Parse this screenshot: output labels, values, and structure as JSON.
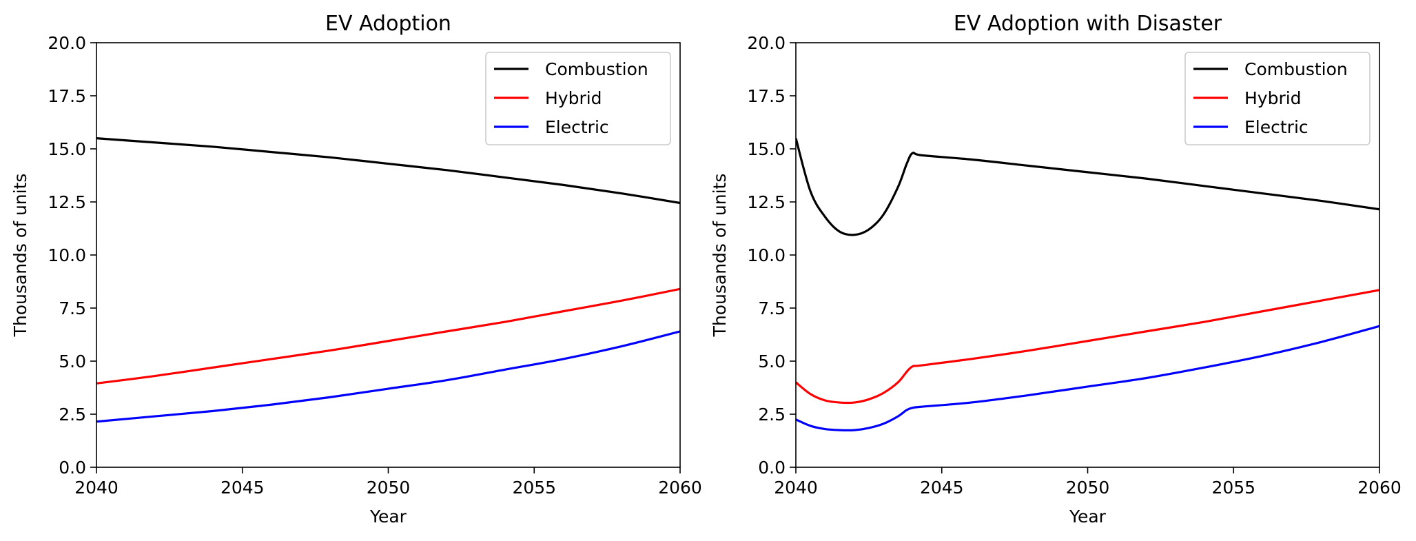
{
  "chart_data": [
    {
      "type": "line",
      "title": "EV Adoption",
      "xlabel": "Year",
      "ylabel": "Thousands of units",
      "xlim": [
        2040,
        2060
      ],
      "ylim": [
        0,
        20
      ],
      "xticks": [
        2040,
        2045,
        2050,
        2055,
        2060
      ],
      "yticks": [
        "0.0",
        "2.5",
        "5.0",
        "7.5",
        "10.0",
        "12.5",
        "15.0",
        "17.5",
        "20.0"
      ],
      "grid": false,
      "legend_position": "top-right",
      "x": [
        2040,
        2042,
        2044,
        2046,
        2048,
        2050,
        2052,
        2054,
        2056,
        2058,
        2060
      ],
      "series": [
        {
          "name": "Combustion",
          "color": "#000000",
          "values": [
            15.5,
            15.3,
            15.1,
            14.85,
            14.6,
            14.3,
            14.0,
            13.65,
            13.3,
            12.9,
            12.45
          ]
        },
        {
          "name": "Hybrid",
          "color": "#ff0000",
          "values": [
            3.95,
            4.3,
            4.7,
            5.1,
            5.5,
            5.95,
            6.4,
            6.85,
            7.35,
            7.85,
            8.4
          ]
        },
        {
          "name": "Electric",
          "color": "#0000ff",
          "values": [
            2.15,
            2.4,
            2.65,
            2.95,
            3.3,
            3.7,
            4.1,
            4.6,
            5.1,
            5.7,
            6.4
          ]
        }
      ]
    },
    {
      "type": "line",
      "title": "EV Adoption with Disaster",
      "xlabel": "Year",
      "ylabel": "Thousands of units",
      "xlim": [
        2040,
        2060
      ],
      "ylim": [
        0,
        20
      ],
      "xticks": [
        2040,
        2045,
        2050,
        2055,
        2060
      ],
      "yticks": [
        "0.0",
        "2.5",
        "5.0",
        "7.5",
        "10.0",
        "12.5",
        "15.0",
        "17.5",
        "20.0"
      ],
      "grid": false,
      "legend_position": "top-right",
      "x": [
        2040,
        2040.5,
        2041,
        2041.5,
        2042,
        2042.5,
        2043,
        2043.5,
        2043.8,
        2044,
        2044.3,
        2046,
        2048,
        2050,
        2052,
        2054,
        2056,
        2058,
        2060
      ],
      "series": [
        {
          "name": "Combustion",
          "color": "#000000",
          "values": [
            15.5,
            13.0,
            11.8,
            11.1,
            10.95,
            11.2,
            11.9,
            13.2,
            14.3,
            14.8,
            14.7,
            14.5,
            14.2,
            13.9,
            13.6,
            13.25,
            12.9,
            12.55,
            12.15
          ]
        },
        {
          "name": "Hybrid",
          "color": "#ff0000",
          "values": [
            4.0,
            3.45,
            3.15,
            3.05,
            3.05,
            3.2,
            3.5,
            4.0,
            4.5,
            4.75,
            4.8,
            5.1,
            5.5,
            5.95,
            6.4,
            6.85,
            7.35,
            7.85,
            8.35
          ]
        },
        {
          "name": "Electric",
          "color": "#0000ff",
          "values": [
            2.25,
            1.95,
            1.8,
            1.75,
            1.75,
            1.85,
            2.05,
            2.4,
            2.7,
            2.8,
            2.85,
            3.05,
            3.4,
            3.8,
            4.2,
            4.7,
            5.25,
            5.9,
            6.65
          ]
        }
      ]
    }
  ]
}
